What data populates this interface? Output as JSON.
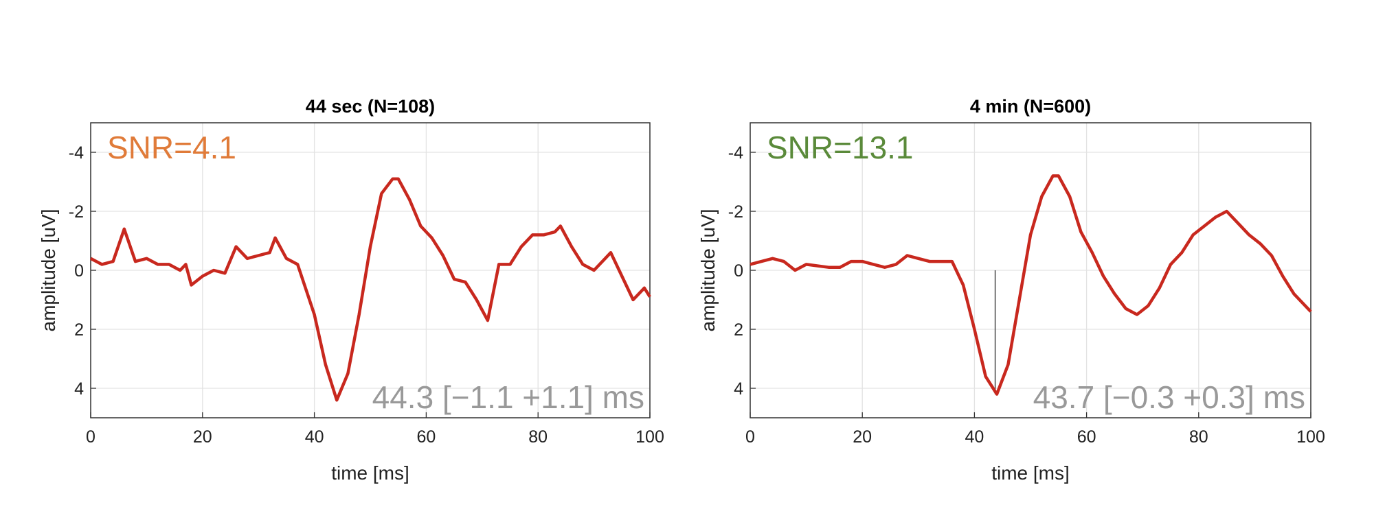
{
  "chart_data": [
    {
      "type": "line",
      "title": "44 sec (N=108)",
      "xlabel": "time [ms]",
      "ylabel": "amplitude [uV]",
      "x": [
        0,
        2,
        4,
        6,
        8,
        10,
        12,
        14,
        16,
        17,
        18,
        20,
        22,
        24,
        26,
        28,
        30,
        32,
        33,
        35,
        37,
        40,
        42,
        44,
        46,
        48,
        50,
        52,
        54,
        55,
        57,
        59,
        61,
        63,
        65,
        67,
        69,
        71,
        73,
        75,
        77,
        79,
        81,
        83,
        84,
        86,
        88,
        90,
        92,
        93,
        95,
        97,
        99,
        100
      ],
      "series": [
        {
          "color": "#c8281e",
          "values": [
            -0.4,
            -0.2,
            -0.3,
            -1.4,
            -0.3,
            -0.4,
            -0.2,
            -0.2,
            0.0,
            -0.2,
            0.5,
            0.2,
            0.0,
            0.1,
            -0.8,
            -0.4,
            -0.5,
            -0.6,
            -1.1,
            -0.4,
            -0.2,
            1.5,
            3.2,
            4.4,
            3.5,
            1.5,
            -0.8,
            -2.6,
            -3.1,
            -3.1,
            -2.4,
            -1.5,
            -1.1,
            -0.5,
            0.3,
            0.4,
            1.0,
            1.7,
            -0.2,
            -0.2,
            -0.8,
            -1.2,
            -1.2,
            -1.3,
            -1.5,
            -0.8,
            -0.2,
            0.0,
            -0.4,
            -0.6,
            0.2,
            1.0,
            0.6,
            0.9
          ]
        }
      ],
      "xlim": [
        0,
        100
      ],
      "xticks": [
        0,
        20,
        40,
        60,
        80,
        100
      ],
      "ylim": [
        5,
        -5
      ],
      "yticks": [
        -4,
        -2,
        0,
        2,
        4
      ],
      "grid": true,
      "snr": {
        "text": "SNR=4.1",
        "color": "#e07b39"
      },
      "latency": {
        "text": "44.3 [−1.1 +1.1] ms",
        "color": "#999999"
      }
    },
    {
      "type": "line",
      "title": "4 min (N=600)",
      "xlabel": "time [ms]",
      "ylabel": "amplitude [uV]",
      "x": [
        0,
        2,
        4,
        6,
        8,
        10,
        14,
        16,
        18,
        20,
        22,
        24,
        26,
        28,
        30,
        32,
        34,
        36,
        38,
        40,
        42,
        44,
        46,
        48,
        50,
        52,
        54,
        55,
        57,
        59,
        61,
        63,
        65,
        67,
        69,
        71,
        73,
        75,
        77,
        79,
        81,
        83,
        85,
        87,
        89,
        91,
        93,
        95,
        97,
        100
      ],
      "series": [
        {
          "color": "#c8281e",
          "values": [
            -0.2,
            -0.3,
            -0.4,
            -0.3,
            0.0,
            -0.2,
            -0.1,
            -0.1,
            -0.3,
            -0.3,
            -0.2,
            -0.1,
            -0.2,
            -0.5,
            -0.4,
            -0.3,
            -0.3,
            -0.3,
            0.5,
            2.0,
            3.6,
            4.2,
            3.2,
            1.0,
            -1.2,
            -2.5,
            -3.2,
            -3.2,
            -2.5,
            -1.3,
            -0.6,
            0.2,
            0.8,
            1.3,
            1.5,
            1.2,
            0.6,
            -0.2,
            -0.6,
            -1.2,
            -1.5,
            -1.8,
            -2.0,
            -1.6,
            -1.2,
            -0.9,
            -0.5,
            0.2,
            0.8,
            1.4
          ]
        }
      ],
      "xlim": [
        0,
        100
      ],
      "xticks": [
        0,
        20,
        40,
        60,
        80,
        100
      ],
      "ylim": [
        5,
        -5
      ],
      "yticks": [
        -4,
        -2,
        0,
        2,
        4
      ],
      "grid": true,
      "snr": {
        "text": "SNR=13.1",
        "color": "#5a8a3a"
      },
      "latency": {
        "text": "43.7 [−0.3 +0.3] ms",
        "color": "#999999"
      },
      "marker": {
        "x": 43.7,
        "y_from": 0,
        "y_to": 4.2
      }
    }
  ]
}
